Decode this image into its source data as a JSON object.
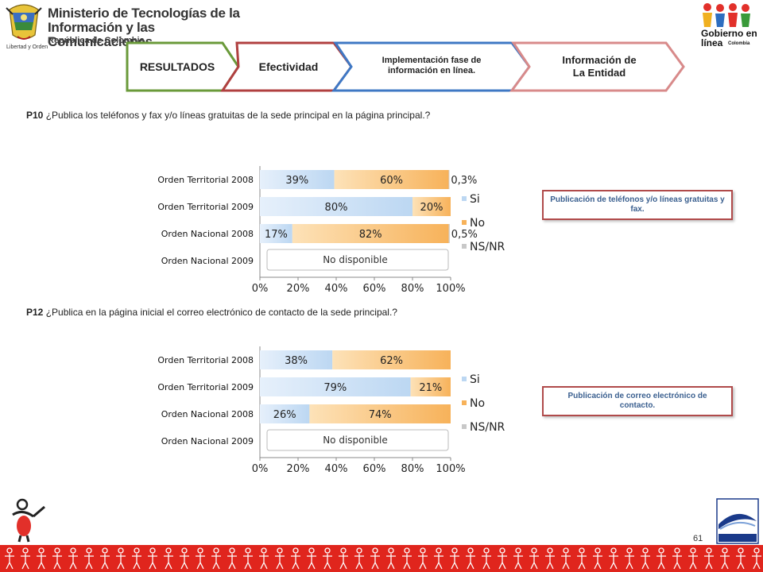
{
  "header": {
    "ministry_line1": "Ministerio de Tecnologías de la",
    "ministry_line2": "Información y las Comunicaciones",
    "ministry_sub": "República de Colombia",
    "ministry_motto": "Libertad y Orden",
    "gel_line1": "Gobierno en línea",
    "gel_country": "Colombia"
  },
  "tabs": [
    {
      "label": "RESULTADOS",
      "color": "#6a9a3a"
    },
    {
      "label": "Efectividad",
      "color": "#b04040"
    },
    {
      "label1": "Implementación fase de",
      "label2": "información en línea.",
      "color": "#3f78c4"
    },
    {
      "label1": "Información de",
      "label2": "La Entidad",
      "color": "#d88a8a"
    }
  ],
  "questions": [
    {
      "code": "P10",
      "text": "¿Publica los teléfonos y fax y/o líneas gratuitas de la sede principal en la página principal.?"
    },
    {
      "code": "P12",
      "text": "¿Publica en la página inicial el correo electrónico de contacto de la sede principal.?"
    }
  ],
  "callouts": [
    "Publicación de teléfonos y/o líneas gratuitas y fax.",
    "Publicación de correo electrónico de contacto."
  ],
  "chart_data": [
    {
      "type": "bar",
      "orientation": "horizontal",
      "stacked": true,
      "categories": [
        "Orden Territorial 2008",
        "Orden Territorial 2009",
        "Orden Nacional 2008",
        "Orden Nacional 2009"
      ],
      "series": [
        {
          "name": "Si",
          "values": [
            39,
            80,
            17,
            null
          ],
          "labels": [
            "39%",
            "80%",
            "17%",
            ""
          ],
          "color": "#bcd7f2"
        },
        {
          "name": "No",
          "values": [
            60,
            20,
            82,
            null
          ],
          "labels": [
            "60%",
            "20%",
            "82%",
            ""
          ],
          "color": "#f7b25a"
        },
        {
          "name": "NS/NR",
          "values": [
            0.3,
            0,
            0.5,
            null
          ],
          "labels": [
            "0,3%",
            "",
            "0,5%",
            ""
          ],
          "color": "#c8c8c8"
        }
      ],
      "xlim": [
        0,
        100
      ],
      "xticks": [
        "0%",
        "20%",
        "40%",
        "60%",
        "80%",
        "100%"
      ],
      "not_available_label": "No disponible",
      "legend": "right"
    },
    {
      "type": "bar",
      "orientation": "horizontal",
      "stacked": true,
      "categories": [
        "Orden Territorial 2008",
        "Orden Territorial 2009",
        "Orden Nacional 2008",
        "Orden Nacional 2009"
      ],
      "series": [
        {
          "name": "Si",
          "values": [
            38,
            79,
            26,
            null
          ],
          "labels": [
            "38%",
            "79%",
            "26%",
            ""
          ],
          "color": "#bcd7f2"
        },
        {
          "name": "No",
          "values": [
            62,
            21,
            74,
            null
          ],
          "labels": [
            "62%",
            "21%",
            "74%",
            ""
          ],
          "color": "#f7b25a"
        },
        {
          "name": "NS/NR",
          "values": [
            0,
            0,
            0,
            null
          ],
          "labels": [
            "",
            "",
            "",
            ""
          ],
          "color": "#c8c8c8"
        }
      ],
      "xlim": [
        0,
        100
      ],
      "xticks": [
        "0%",
        "20%",
        "40%",
        "60%",
        "80%",
        "100%"
      ],
      "not_available_label": "No disponible",
      "legend": "right"
    }
  ],
  "page_number": "61"
}
